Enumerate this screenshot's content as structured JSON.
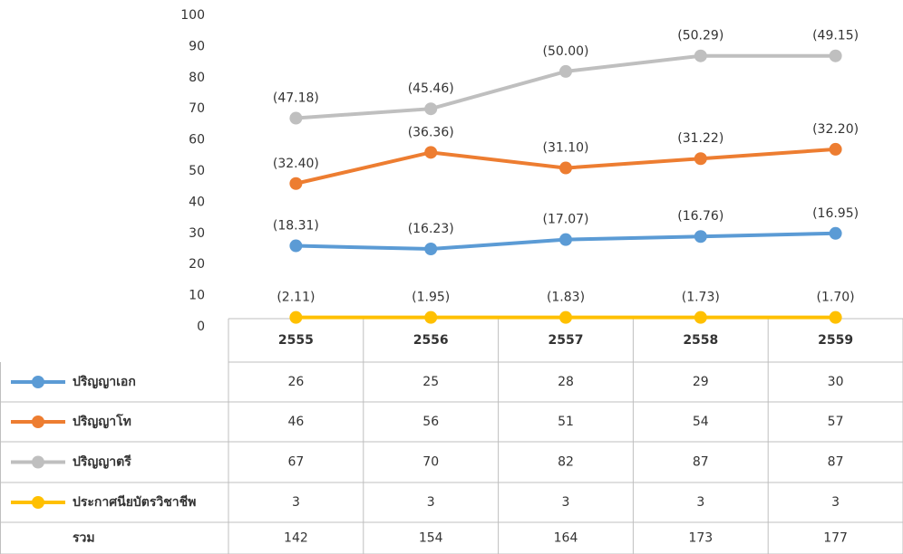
{
  "chart_data": {
    "type": "line",
    "categories": [
      "2555",
      "2556",
      "2557",
      "2558",
      "2559"
    ],
    "ylim": [
      0,
      100
    ],
    "yticks": [
      0,
      10,
      20,
      30,
      40,
      50,
      60,
      70,
      80,
      90,
      100
    ],
    "series": [
      {
        "name": "ปริญญาเอก",
        "color": "#5b9bd5",
        "values": [
          26,
          25,
          28,
          29,
          30
        ],
        "percent_labels": [
          "(18.31)",
          "(16.23)",
          "(17.07)",
          "(16.76)",
          "(16.95)"
        ]
      },
      {
        "name": "ปริญญาโท",
        "color": "#ed7d31",
        "values": [
          46,
          56,
          51,
          54,
          57
        ],
        "percent_labels": [
          "(32.40)",
          "(36.36)",
          "(31.10)",
          "(31.22)",
          "(32.20)"
        ]
      },
      {
        "name": "ปริญญาตรี",
        "color": "#bfbfbf",
        "values": [
          67,
          70,
          82,
          87,
          87
        ],
        "percent_labels": [
          "(47.18)",
          "(45.46)",
          "(50.00)",
          "(50.29)",
          "(49.15)"
        ]
      },
      {
        "name": "ประกาศนียบัตรวิชาชีพ",
        "color": "#ffc000",
        "values": [
          3,
          3,
          3,
          3,
          3
        ],
        "percent_labels": [
          "(2.11)",
          "(1.95)",
          "(1.83)",
          "(1.73)",
          "(1.70)"
        ]
      }
    ],
    "totals": {
      "name": "รวม",
      "values": [
        142,
        154,
        164,
        173,
        177
      ]
    }
  }
}
